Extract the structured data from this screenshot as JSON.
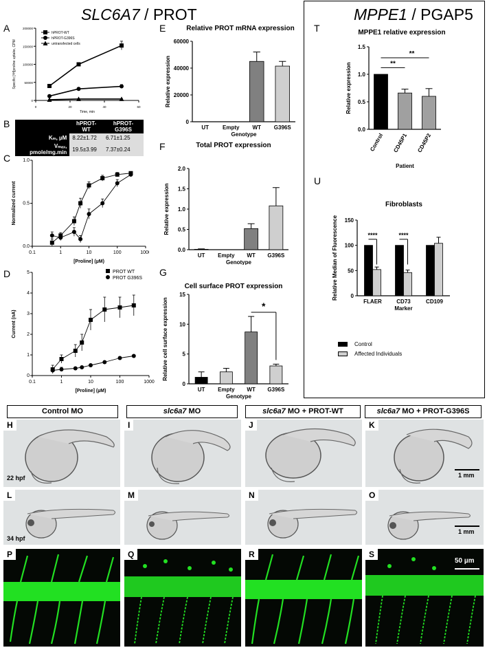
{
  "headers": {
    "left_gene": "SLC6A7",
    "left_protein": " / PROT",
    "right_gene": "MPPE1",
    "right_protein": " / PGAP5"
  },
  "panel_letters": {
    "A": "A",
    "B": "B",
    "C": "C",
    "D": "D",
    "E": "E",
    "F": "F",
    "G": "G",
    "T": "T",
    "U": "U",
    "H": "H",
    "I": "I",
    "J": "J",
    "K": "K",
    "L": "L",
    "M": "M",
    "N": "N",
    "O": "O",
    "P": "P",
    "Q": "Q",
    "R": "R",
    "S": "S"
  },
  "chart_data": [
    {
      "id": "A",
      "type": "line",
      "xlabel": "Time, min",
      "ylabel": "Specific [³H]proline uptake, CPM",
      "xlim": [
        0,
        60
      ],
      "ylim": [
        0,
        200000
      ],
      "xticks": [
        "0",
        "20",
        "40",
        "60"
      ],
      "yticks": [
        "0",
        "50000",
        "100000",
        "150000",
        "200000"
      ],
      "series": [
        {
          "name": "hPROT-WT",
          "marker": "square",
          "x": [
            8,
            25,
            50
          ],
          "y": [
            40000,
            100000,
            152000
          ],
          "err": [
            3000,
            4000,
            12000
          ]
        },
        {
          "name": "hPROT-G396S",
          "marker": "circle",
          "x": [
            8,
            25,
            50
          ],
          "y": [
            12000,
            32000,
            39000
          ],
          "err": [
            1500,
            2000,
            5000
          ]
        },
        {
          "name": "untransfected cells",
          "marker": "triangle",
          "x": [
            8,
            25,
            50
          ],
          "y": [
            2000,
            4000,
            4000
          ],
          "err": [
            500,
            500,
            500
          ]
        }
      ]
    },
    {
      "id": "C",
      "type": "scatter",
      "xlabel": "[Proline] (µM)",
      "ylabel": "Normalized current",
      "xscale": "log",
      "xlim": [
        0.1,
        1000
      ],
      "ylim": [
        0,
        1.2
      ],
      "xticks": [
        "0.1",
        "1",
        "10",
        "100",
        "1000"
      ],
      "yticks": [
        "0.0",
        "0.5",
        "1.0"
      ],
      "series": [
        {
          "marker": "square",
          "x": [
            0.5,
            1,
            3,
            5,
            10,
            30,
            100,
            300
          ],
          "y": [
            0.05,
            0.15,
            0.35,
            0.6,
            0.85,
            0.95,
            1.0,
            1.02
          ],
          "err": [
            0.05,
            0.04,
            0.06,
            0.07,
            0.05,
            0.04,
            0.03,
            0.02
          ]
        },
        {
          "marker": "circle",
          "x": [
            0.5,
            1,
            3,
            5,
            10,
            30,
            100,
            300
          ],
          "y": [
            0.15,
            0.12,
            0.2,
            0.1,
            0.45,
            0.6,
            0.88,
            1.0
          ],
          "err": [
            0.05,
            0.04,
            0.06,
            0.05,
            0.07,
            0.06,
            0.05,
            0.02
          ]
        }
      ]
    },
    {
      "id": "D",
      "type": "scatter",
      "xlabel": "[Proline] (µM)",
      "ylabel": "Current (nA)",
      "xscale": "log",
      "xlim": [
        0.1,
        1000
      ],
      "ylim": [
        0,
        5
      ],
      "xticks": [
        "0.1",
        "1",
        "10",
        "100",
        "1000"
      ],
      "yticks": [
        "0",
        "1",
        "2",
        "3",
        "4",
        "5"
      ],
      "series": [
        {
          "name": "PROT WT",
          "marker": "square",
          "x": [
            0.5,
            1,
            3,
            5,
            10,
            30,
            100,
            300
          ],
          "y": [
            0.3,
            0.8,
            1.2,
            1.6,
            2.7,
            3.2,
            3.3,
            3.4
          ],
          "err": [
            0.2,
            0.2,
            0.3,
            0.4,
            0.5,
            0.6,
            0.5,
            0.5
          ]
        },
        {
          "name": "PROT G396S",
          "marker": "circle",
          "x": [
            0.5,
            1,
            3,
            5,
            10,
            30,
            100,
            300
          ],
          "y": [
            0.25,
            0.3,
            0.35,
            0.4,
            0.5,
            0.65,
            0.85,
            0.95
          ],
          "err": [
            0.1,
            0.1,
            0.05,
            0.05,
            0.05,
            0.05,
            0.05,
            0.05
          ]
        }
      ]
    },
    {
      "id": "E",
      "type": "bar",
      "title": "Relative PROT mRNA expression",
      "xlabel": "Genotype",
      "ylabel": "Relative expression",
      "categories": [
        "UT",
        "Empty",
        "WT",
        "G396S"
      ],
      "values": [
        0,
        0,
        45000,
        41500
      ],
      "err": [
        0,
        0,
        7000,
        3500
      ],
      "ylim": [
        0,
        60000
      ],
      "yticks": [
        "0",
        "20000",
        "40000",
        "60000"
      ]
    },
    {
      "id": "F",
      "type": "bar",
      "title": "Total PROT expression",
      "xlabel": "Genotype",
      "ylabel": "Relative  expression",
      "categories": [
        "UT",
        "Empty",
        "WT",
        "G396S"
      ],
      "values": [
        0.01,
        0.0,
        0.52,
        1.08
      ],
      "err": [
        0.01,
        0,
        0.12,
        0.45
      ],
      "ylim": [
        0,
        2.0
      ],
      "yticks": [
        "0.0",
        "0.5",
        "1.0",
        "1.5",
        "2.0"
      ]
    },
    {
      "id": "G",
      "type": "bar",
      "title": "Cell surface PROT expression",
      "xlabel": "Genotype",
      "ylabel": "Relative cell surface expression",
      "categories": [
        "UT",
        "Empty",
        "WT",
        "G396S"
      ],
      "values": [
        1.1,
        2.0,
        8.7,
        3.0
      ],
      "err": [
        0.9,
        0.6,
        2.6,
        0.3
      ],
      "ylim": [
        0,
        15
      ],
      "yticks": [
        "0",
        "5",
        "10",
        "15"
      ],
      "annotation": "*"
    },
    {
      "id": "T",
      "type": "bar",
      "title": "MPPE1 relative expression",
      "xlabel": "Patient",
      "ylabel": "Relative expression",
      "categories": [
        "Control",
        "CD45P1",
        "CD45P2"
      ],
      "values": [
        1.0,
        0.66,
        0.6
      ],
      "err": [
        0,
        0.07,
        0.14
      ],
      "ylim": [
        0,
        1.5
      ],
      "yticks": [
        "0.0",
        "0.5",
        "1.0",
        "1.5"
      ],
      "annotations": [
        "**",
        "**"
      ]
    },
    {
      "id": "U",
      "type": "bar",
      "title": "Fibroblasts",
      "xlabel": "Marker",
      "ylabel": "Relative Median of Fluorescence",
      "categories": [
        "FLAER",
        "CD73",
        "CD109"
      ],
      "ylim": [
        0,
        150
      ],
      "yticks": [
        "0",
        "50",
        "100",
        "150"
      ],
      "series": [
        {
          "name": "Control",
          "values": [
            100,
            100,
            100
          ],
          "err": [
            0,
            0,
            0
          ]
        },
        {
          "name": "Affected Individuals",
          "values": [
            52,
            46,
            104
          ],
          "err": [
            5,
            5,
            12
          ]
        }
      ],
      "annotations": [
        "****",
        "****"
      ]
    }
  ],
  "table_B": {
    "headers": [
      "",
      "hPROT-WT",
      "hPROT-G396S"
    ],
    "rows": [
      [
        "Kₘ, µM",
        "8.22±1.72",
        "6.71±1.25"
      ],
      [
        "Vₘₐₓ, pmole/mg.min",
        "19.5±3.99",
        "7.37±0.24"
      ]
    ]
  },
  "image_grid": {
    "columns": [
      "Control MO",
      "slc6a7 MO",
      "slc6a7 MO + PROT-WT",
      "slc6a7 MO + PROT-G396S"
    ],
    "column_italic": [
      "",
      "slc6a7",
      "slc6a7",
      "slc6a7"
    ],
    "column_rest": [
      "Control MO",
      " MO",
      " MO + PROT-WT",
      " MO + PROT-G396S"
    ],
    "row1_time": "22 hpf",
    "row2_time": "34 hpf",
    "scale_1mm": "1 mm",
    "scale_50um": "50 µm"
  },
  "legend_U": [
    "Control",
    "Affected Individuals"
  ],
  "colors": {
    "black": "#000000",
    "darkgray": "#808080",
    "lightgray": "#cfcfcf",
    "green": "#22e022",
    "dark": "#060c06"
  }
}
